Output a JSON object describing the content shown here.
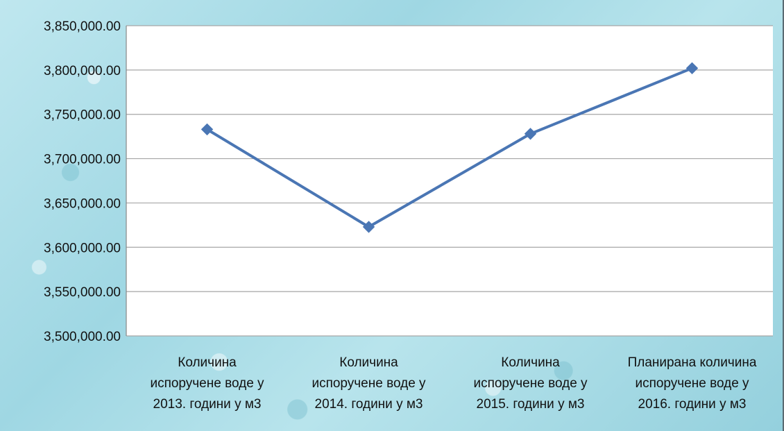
{
  "chart_data": {
    "type": "line",
    "categories": [
      [
        "Количина",
        "испоручене воде у",
        "2013. години у м3"
      ],
      [
        "Количина",
        "испоручене воде у",
        "2014. години у м3"
      ],
      [
        "Количина",
        "испоручене воде у",
        "2015. години у м3"
      ],
      [
        "Планирана количина",
        "испоручене воде у",
        "2016. години у м3"
      ]
    ],
    "series": [
      {
        "values": [
          3733000,
          3623000,
          3728000,
          3802000
        ]
      }
    ],
    "ylim": [
      3500000,
      3850000
    ],
    "ytick_step": 50000,
    "y_tick_labels": [
      "3,500,000.00",
      "3,550,000.00",
      "3,600,000.00",
      "3,650,000.00",
      "3,700,000.00",
      "3,750,000.00",
      "3,800,000.00",
      "3,850,000.00"
    ],
    "grid": true,
    "legend": "none",
    "colors": {
      "line": "#4a76b4",
      "plot_bg": "#ffffff",
      "grid": "#a6a6a6"
    }
  }
}
